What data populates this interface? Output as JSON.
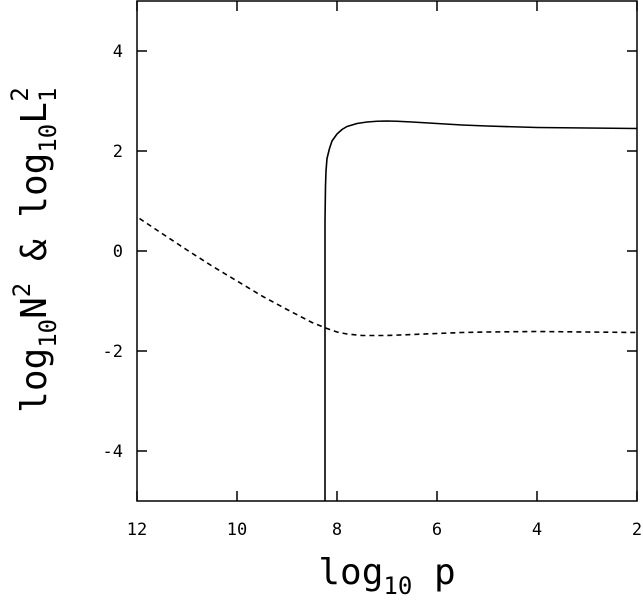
{
  "chart_data": {
    "type": "line",
    "x_axis": {
      "label_main": "log",
      "label_sub": "10",
      "label_tail": " p",
      "range": [
        12,
        2
      ],
      "reversed": true,
      "ticks": [
        12,
        10,
        8,
        6,
        4,
        2
      ]
    },
    "y_axis": {
      "label_part1": "log",
      "label_sub1": "10",
      "label_part2": "N",
      "label_sup2": "2",
      "label_part3": " & log",
      "label_sub3": "10",
      "label_part4": "L",
      "label_sub4": "1",
      "label_sup4": "2",
      "range": [
        -5,
        5
      ],
      "ticks": [
        4,
        2,
        0,
        -2,
        -4
      ]
    },
    "grid": false,
    "legend": "none",
    "series": [
      {
        "style": "solid",
        "x": [
          8.24,
          8.24,
          8.23,
          8.22,
          8.2,
          8.15,
          8.1,
          8.0,
          7.9,
          7.8,
          7.6,
          7.4,
          7.2,
          7.0,
          6.8,
          6.5,
          6.0,
          5.5,
          5.0,
          4.5,
          4.0,
          3.5,
          3.0,
          2.5,
          2.0
        ],
        "y": [
          -5.0,
          0.6,
          1.3,
          1.6,
          1.85,
          2.05,
          2.2,
          2.34,
          2.43,
          2.49,
          2.55,
          2.58,
          2.595,
          2.6,
          2.595,
          2.58,
          2.55,
          2.52,
          2.5,
          2.485,
          2.47,
          2.465,
          2.46,
          2.455,
          2.45
        ]
      },
      {
        "style": "dashed",
        "x": [
          11.95,
          11.5,
          11.0,
          10.5,
          10.0,
          9.5,
          9.0,
          8.5,
          8.2,
          8.0,
          7.8,
          7.5,
          7.0,
          6.5,
          6.0,
          5.5,
          5.0,
          4.5,
          4.0,
          3.5,
          3.0,
          2.5,
          2.0
        ],
        "y": [
          0.65,
          0.35,
          0.02,
          -0.3,
          -0.6,
          -0.9,
          -1.17,
          -1.43,
          -1.55,
          -1.62,
          -1.66,
          -1.69,
          -1.69,
          -1.67,
          -1.65,
          -1.63,
          -1.62,
          -1.615,
          -1.61,
          -1.615,
          -1.62,
          -1.625,
          -1.63
        ]
      }
    ]
  }
}
